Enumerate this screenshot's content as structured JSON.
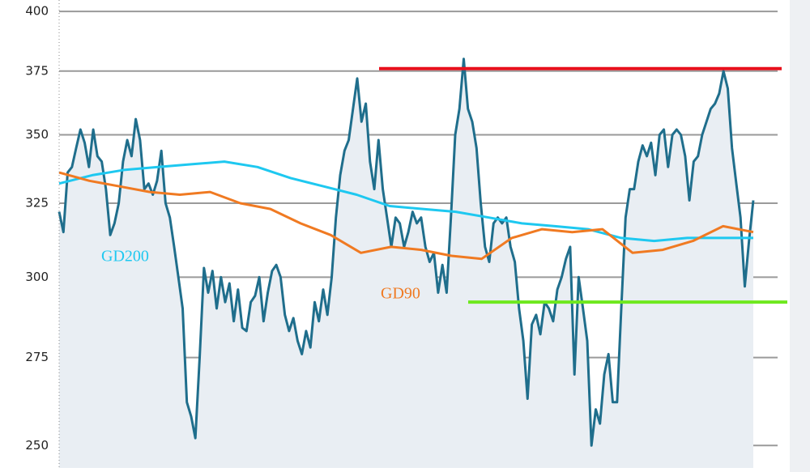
{
  "chart_data": {
    "type": "line",
    "log_y": true,
    "grid": true,
    "ylim": [
      244,
      405
    ],
    "yticks": [
      250,
      275,
      300,
      325,
      350,
      375,
      400
    ],
    "series": [
      {
        "color": "#1f6e8c",
        "fill": "#e9eef3",
        "values": [
          322,
          315,
          336,
          338,
          345,
          352,
          347,
          338,
          352,
          342,
          340,
          330,
          314,
          318,
          325,
          340,
          348,
          342,
          356,
          348,
          330,
          332,
          328,
          333,
          344,
          325,
          320,
          310,
          300,
          290,
          262,
          258,
          252,
          275,
          303,
          295,
          302,
          290,
          300,
          292,
          298,
          286,
          296,
          284,
          283,
          292,
          294,
          300,
          286,
          295,
          302,
          304,
          300,
          288,
          283,
          287,
          280,
          276,
          283,
          278,
          292,
          286,
          296,
          288,
          300,
          320,
          335,
          344,
          348,
          360,
          372,
          355,
          362,
          340,
          330,
          348,
          330,
          320,
          310,
          320,
          318,
          310,
          315,
          322,
          318,
          320,
          310,
          305,
          308,
          295,
          304,
          295,
          320,
          350,
          360,
          380,
          360,
          355,
          345,
          325,
          310,
          305,
          318,
          320,
          318,
          320,
          310,
          305,
          290,
          280,
          263,
          285,
          288,
          282,
          292,
          290,
          286,
          296,
          300,
          306,
          310,
          270,
          300,
          290,
          280,
          250,
          260,
          256,
          270,
          276,
          262,
          262,
          290,
          320,
          330,
          330,
          340,
          346,
          342,
          347,
          335,
          350,
          352,
          338,
          350,
          352,
          350,
          342,
          326,
          340,
          342,
          350,
          355,
          360,
          362,
          366,
          375,
          368,
          345,
          332,
          320,
          297,
          312,
          326
        ]
      },
      {
        "name": "GD200",
        "color": "#1ec8f0",
        "values": [
          332,
          335,
          337,
          338,
          339,
          340,
          338,
          334,
          331,
          328,
          324,
          323,
          322,
          320,
          318,
          317,
          316,
          313,
          312,
          313,
          313,
          313
        ]
      },
      {
        "name": "GD90",
        "color": "#f07a22",
        "values": [
          336,
          333,
          331,
          329,
          328,
          329,
          325,
          323,
          318,
          314,
          308,
          310,
          309,
          307,
          306,
          313,
          316,
          315,
          316,
          308,
          309,
          312,
          317,
          315
        ]
      }
    ],
    "hlines": [
      {
        "value": 376,
        "color": "#e8101c"
      },
      {
        "value": 292,
        "color": "#6ee81e"
      }
    ]
  }
}
